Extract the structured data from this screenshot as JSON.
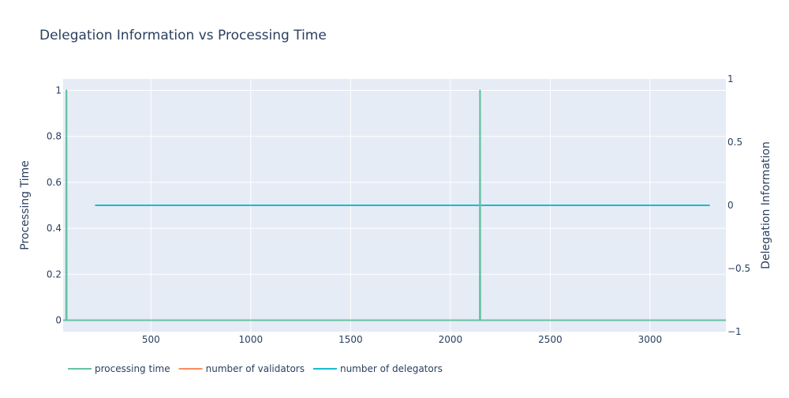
{
  "chart_data": {
    "type": "line",
    "title": "Delegation Information vs Processing Time",
    "xlabel": "",
    "ylabel": "Processing Time",
    "y2label": "Delegation Information",
    "xlim": [
      60,
      3380
    ],
    "ylim": [
      -0.05,
      1.05
    ],
    "y2lim": [
      -1,
      1
    ],
    "x_ticks": [
      500,
      1000,
      1500,
      2000,
      2500,
      3000
    ],
    "x_tick_labels": [
      "500",
      "1000",
      "1500",
      "2000",
      "2500",
      "3000"
    ],
    "y_ticks": [
      0,
      0.2,
      0.4,
      0.6,
      0.8,
      1
    ],
    "y_tick_labels": [
      "0",
      "0.2",
      "0.4",
      "0.6",
      "0.8",
      "1"
    ],
    "y2_ticks": [
      -1,
      -0.5,
      0,
      0.5,
      1
    ],
    "y2_tick_labels": [
      "−1",
      "−0.5",
      "0",
      "0.5",
      "1"
    ],
    "grid": true,
    "legend_position": "bottom-left horizontal",
    "series": [
      {
        "name": "processing time",
        "axis": "y",
        "color": "#66c2a5",
        "x": [
          60,
          75,
          76,
          77,
          78,
          2147,
          2148,
          2149,
          2150,
          3380
        ],
        "y": [
          0,
          0,
          1,
          1,
          0,
          0,
          1,
          1,
          0,
          0
        ]
      },
      {
        "name": "number of validators",
        "axis": "y2",
        "color": "#fc8d62",
        "x": [],
        "y": []
      },
      {
        "name": "number of delegators",
        "axis": "y2",
        "color": "#17becf",
        "x": [
          220,
          3300
        ],
        "y": [
          0,
          0
        ]
      }
    ]
  }
}
